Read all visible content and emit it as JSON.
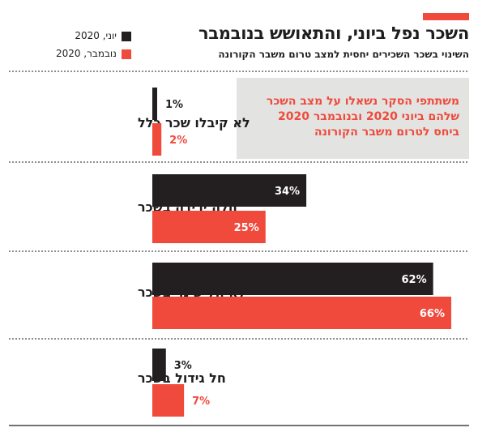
{
  "header": {
    "title": "השכר נפל ביוני, והתאושש בנובמבר",
    "subtitle": "השינוי בשכר השכירים יחסית למצב טרום משבר הקורונה"
  },
  "note": {
    "text": "משתתפי הסקר נשאלו על מצב השכר שלהם ביוני 2020 ובנובמבר 2020 ביחס לטרום משבר הקורונה"
  },
  "colors": {
    "june": "#231f20",
    "november": "#ef4a3c",
    "grid": "#1f1e1e",
    "note_bg": "#e3e3e1"
  },
  "chart_data": {
    "type": "bar",
    "orientation": "horizontal",
    "categories": [
      "לא קיבלו שכר כלל",
      "חלה ירידה בשכר",
      "לא חל שינוי בשכר",
      "חל גידול בשכר"
    ],
    "series": [
      {
        "name": "יוני, 2020",
        "color": "#231f20",
        "values": [
          1,
          34,
          62,
          3
        ]
      },
      {
        "name": "נובמבר, 2020",
        "color": "#ef4a3c",
        "values": [
          2,
          25,
          66,
          7
        ]
      }
    ],
    "unit": "%",
    "xlim": [
      0,
      66
    ]
  }
}
